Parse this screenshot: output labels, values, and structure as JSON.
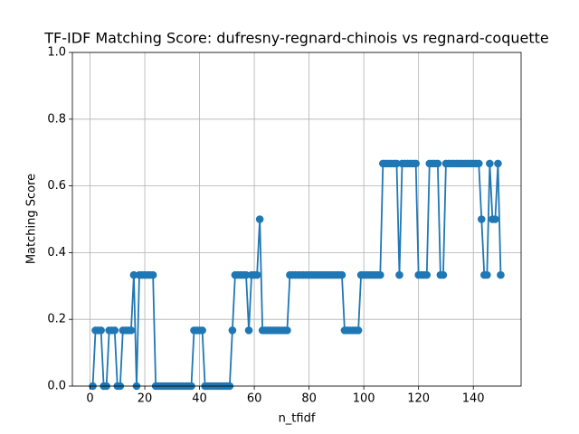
{
  "chart_data": {
    "type": "line",
    "title": "TF-IDF Matching Score: dufresny-regnard-chinois vs regnard-coquette",
    "x_label": "n_tfidf",
    "y_label": "Matching Score",
    "x": [
      1,
      2,
      3,
      4,
      5,
      6,
      7,
      8,
      9,
      10,
      11,
      12,
      13,
      14,
      15,
      16,
      17,
      18,
      19,
      20,
      21,
      22,
      23,
      24,
      25,
      26,
      27,
      28,
      29,
      30,
      31,
      32,
      33,
      34,
      35,
      36,
      37,
      38,
      39,
      40,
      41,
      42,
      43,
      44,
      45,
      46,
      47,
      48,
      49,
      50,
      51,
      52,
      53,
      54,
      55,
      56,
      57,
      58,
      59,
      60,
      61,
      62,
      63,
      64,
      65,
      66,
      67,
      68,
      69,
      70,
      71,
      72,
      73,
      74,
      75,
      76,
      77,
      78,
      79,
      80,
      81,
      82,
      83,
      84,
      85,
      86,
      87,
      88,
      89,
      90,
      91,
      92,
      93,
      94,
      95,
      96,
      97,
      98,
      99,
      100,
      101,
      102,
      103,
      104,
      105,
      106,
      107,
      108,
      109,
      110,
      111,
      112,
      113,
      114,
      115,
      116,
      117,
      118,
      119,
      120,
      121,
      122,
      123,
      124,
      125,
      126,
      127,
      128,
      129,
      130,
      131,
      132,
      133,
      134,
      135,
      136,
      137,
      138,
      139,
      140,
      141,
      142,
      143,
      144,
      145,
      146,
      147,
      148,
      149,
      150
    ],
    "series": [
      {
        "color": "#1f77b4",
        "values": [
          0,
          0.167,
          0.167,
          0.167,
          0,
          0,
          0.167,
          0.167,
          0.167,
          0,
          0,
          0.167,
          0.167,
          0.167,
          0.167,
          0.333,
          0,
          0.333,
          0.333,
          0.333,
          0.333,
          0.333,
          0.333,
          0,
          0,
          0,
          0,
          0,
          0,
          0,
          0,
          0,
          0,
          0,
          0,
          0,
          0,
          0.167,
          0.167,
          0.167,
          0.167,
          0,
          0,
          0,
          0,
          0,
          0,
          0,
          0,
          0,
          0,
          0.167,
          0.333,
          0.333,
          0.333,
          0.333,
          0.333,
          0.167,
          0.333,
          0.333,
          0.333,
          0.5,
          0.167,
          0.167,
          0.167,
          0.167,
          0.167,
          0.167,
          0.167,
          0.167,
          0.167,
          0.167,
          0.333,
          0.333,
          0.333,
          0.333,
          0.333,
          0.333,
          0.333,
          0.333,
          0.333,
          0.333,
          0.333,
          0.333,
          0.333,
          0.333,
          0.333,
          0.333,
          0.333,
          0.333,
          0.333,
          0.333,
          0.167,
          0.167,
          0.167,
          0.167,
          0.167,
          0.167,
          0.333,
          0.333,
          0.333,
          0.333,
          0.333,
          0.333,
          0.333,
          0.333,
          0.667,
          0.667,
          0.667,
          0.667,
          0.667,
          0.667,
          0.333,
          0.667,
          0.667,
          0.667,
          0.667,
          0.667,
          0.667,
          0.333,
          0.333,
          0.333,
          0.333,
          0.667,
          0.667,
          0.667,
          0.667,
          0.333,
          0.333,
          0.667,
          0.667,
          0.667,
          0.667,
          0.667,
          0.667,
          0.667,
          0.667,
          0.667,
          0.667,
          0.667,
          0.667,
          0.667,
          0.5,
          0.333,
          0.333,
          0.667,
          0.5,
          0.5,
          0.667,
          0.333
        ]
      }
    ],
    "xlim": [
      -6.45,
      157.45
    ],
    "ylim": [
      0,
      1
    ],
    "xticks": [
      0,
      20,
      40,
      60,
      80,
      100,
      120,
      140
    ],
    "yticks": [
      {
        "value": 0,
        "label": "0.0"
      },
      {
        "value": 0.2,
        "label": "0.2"
      },
      {
        "value": 0.4,
        "label": "0.4"
      },
      {
        "value": 0.6,
        "label": "0.6"
      },
      {
        "value": 0.8,
        "label": "0.8"
      },
      {
        "value": 1,
        "label": "1.0"
      }
    ],
    "grid": true
  }
}
